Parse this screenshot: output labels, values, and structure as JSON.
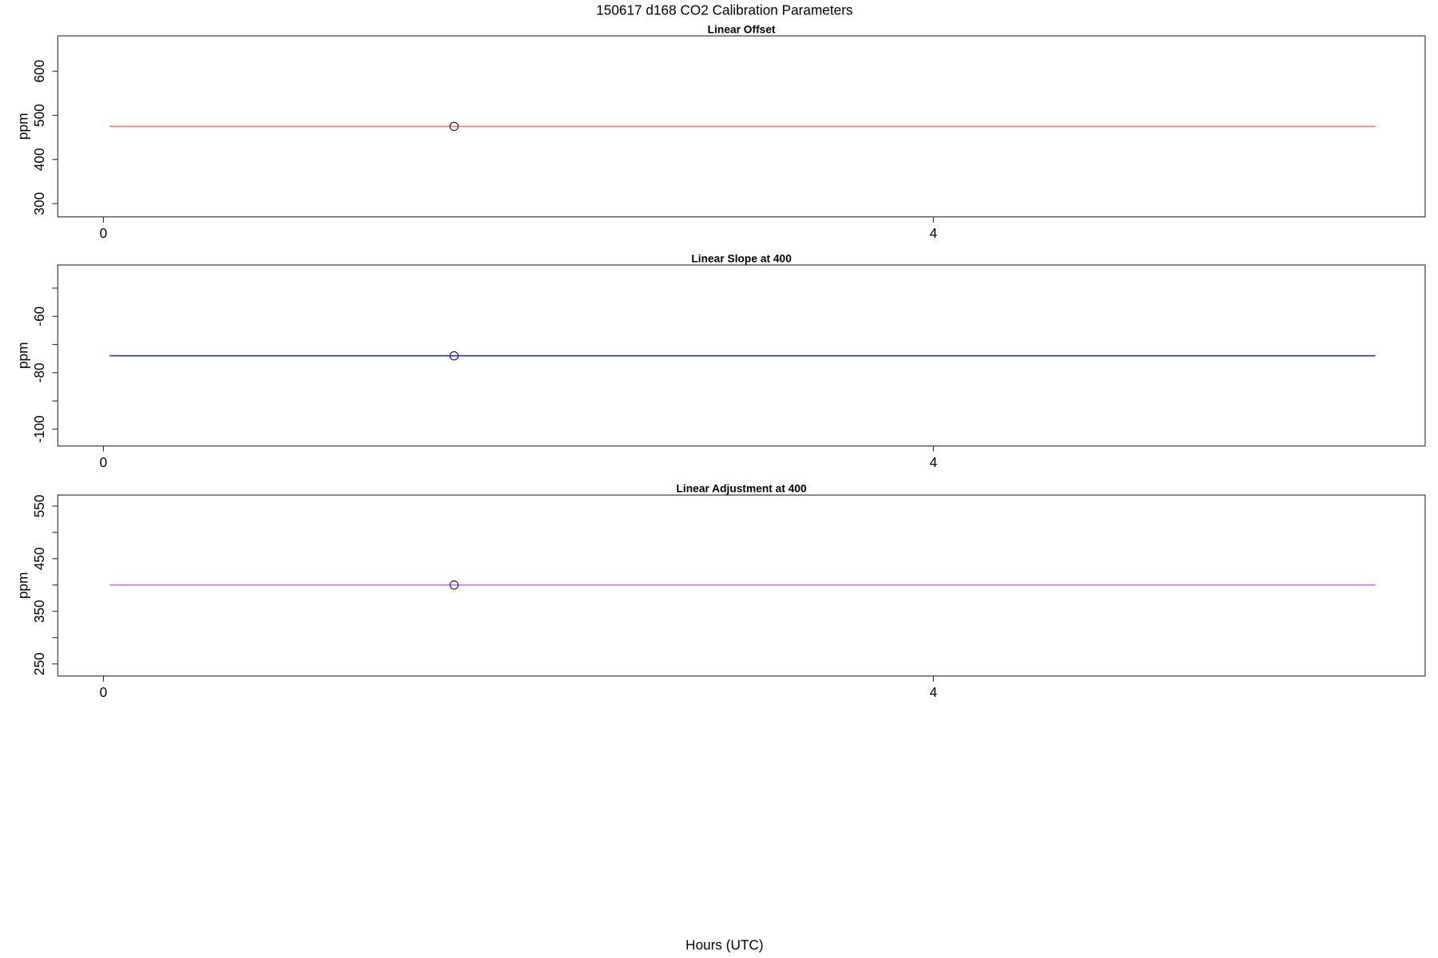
{
  "title": "150617   d168   CO2 Calibration Parameters",
  "xlabel": "Hours (UTC)",
  "chart_data": [
    {
      "type": "line",
      "title": "Linear Offset",
      "ylabel": "ppm",
      "xlim": [
        -0.22,
        6.37
      ],
      "ylim": [
        270,
        680
      ],
      "x_ticks": [
        0,
        4
      ],
      "y_ticks": [
        300,
        400,
        500,
        600
      ],
      "y_minor_ticks": [],
      "line": {
        "x": [
          0.03,
          6.13
        ],
        "y": [
          475,
          475
        ],
        "color": "#f08080"
      },
      "points": [
        {
          "x": 1.69,
          "y": 475
        }
      ],
      "grid": false
    },
    {
      "type": "line",
      "title": "Linear Slope at 400",
      "ylabel": "ppm",
      "xlim": [
        -0.22,
        6.37
      ],
      "ylim": [
        -106,
        -41.8
      ],
      "x_ticks": [
        0,
        4
      ],
      "y_ticks": [
        -100,
        -80,
        -60
      ],
      "y_minor_ticks": [
        -90,
        -70,
        -50
      ],
      "line": {
        "x": [
          0.03,
          6.13
        ],
        "y": [
          -74,
          -74
        ],
        "color": "#3333ee"
      },
      "points": [
        {
          "x": 1.69,
          "y": -74
        }
      ],
      "grid": false
    },
    {
      "type": "line",
      "title": "Linear Adjustment at 400",
      "ylabel": "ppm",
      "xlim": [
        -0.22,
        6.37
      ],
      "ylim": [
        227,
        571
      ],
      "x_ticks": [
        0,
        4
      ],
      "y_ticks": [
        250,
        350,
        450,
        550
      ],
      "y_minor_ticks": [
        300,
        400,
        500
      ],
      "line": {
        "x": [
          0.03,
          6.13
        ],
        "y": [
          400,
          400
        ],
        "color": "#cc77ee"
      },
      "points": [
        {
          "x": 1.69,
          "y": 400
        }
      ],
      "grid": false
    }
  ]
}
